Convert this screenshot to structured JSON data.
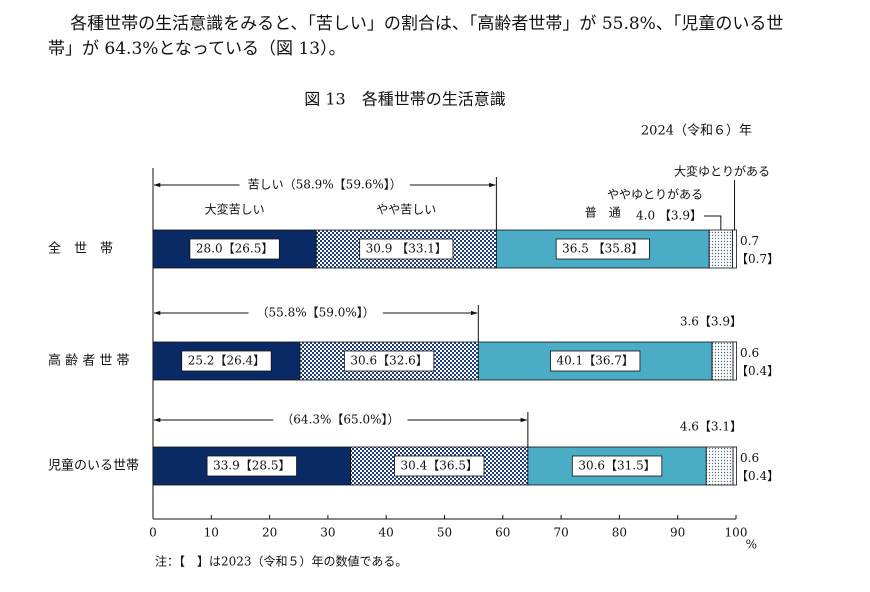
{
  "intro": "各種世帯の生活意識をみると、「苦しい」の割合は、「高齢者世帯」が 55.8%、「児童のいる世帯」が 64.3%となっている（図 13）。",
  "chart_data": {
    "type": "bar",
    "orientation": "horizontal",
    "stacked": true,
    "title": "図 13　各種世帯の生活意識",
    "subtitle": "2024（令和６）年",
    "categories": [
      "全　世　帯",
      "高 齢 者 世 帯",
      "児童のいる世帯"
    ],
    "series": [
      {
        "name": "大変苦しい",
        "color": "#0a2a66",
        "values": [
          28.0,
          25.2,
          33.9
        ],
        "value_labels": [
          "28.0【26.5】",
          "25.2【26.4】",
          "33.9【28.5】"
        ]
      },
      {
        "name": "やや苦しい",
        "pattern": "checker",
        "color": "#1f3f7a",
        "values": [
          30.9,
          30.6,
          30.4
        ],
        "value_labels": [
          "30.9 【33.1】",
          "30.6【32.6】",
          "30.4【36.5】"
        ]
      },
      {
        "name": "普　通",
        "color": "#4bacc6",
        "values": [
          36.5,
          40.1,
          30.6
        ],
        "value_labels": [
          "36.5 【35.8】",
          "40.1【36.7】",
          "30.6【31.5】"
        ]
      },
      {
        "name": "ややゆとりがある",
        "pattern": "dots",
        "color": "#5a6e8a",
        "values": [
          4.0,
          3.6,
          4.6
        ],
        "value_labels": [
          "4.0 【3.9】",
          "3.6【3.9】",
          "4.6【3.1】"
        ]
      },
      {
        "name": "大変ゆとりがある",
        "color": "#ffffff",
        "values": [
          0.7,
          0.6,
          0.6
        ],
        "value_labels": [
          "0.7【0.7】",
          "0.6【0.4】",
          "0.6【0.4】"
        ]
      }
    ],
    "annotations": [
      {
        "text": "苦しい（58.9%【59.6%】）",
        "value": 58.9
      },
      {
        "text": "（55.8%【59.0%】）",
        "value": 55.8
      },
      {
        "text": "（64.3%【65.0%】）",
        "value": 64.3
      }
    ],
    "xlim": [
      0,
      100
    ],
    "xticks": [
      0,
      10,
      20,
      30,
      40,
      50,
      60,
      70,
      80,
      90,
      100
    ],
    "xunit": "%",
    "note": "注：【　】は2023（令和５）年の数値である。"
  }
}
